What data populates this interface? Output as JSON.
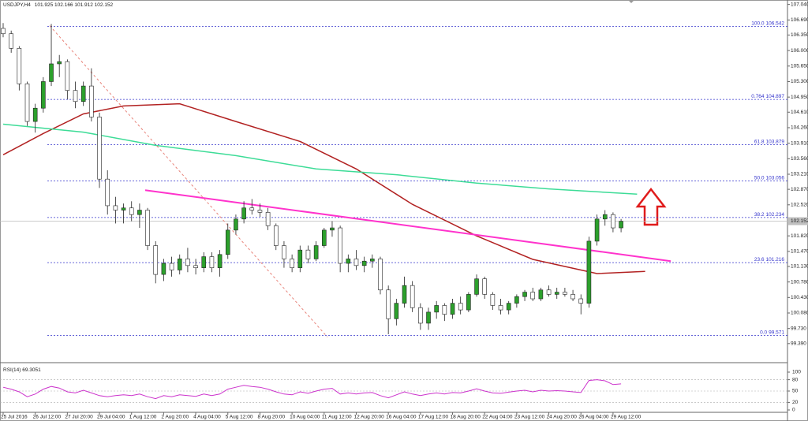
{
  "chart_data": [
    {
      "type": "candlestick",
      "title": "USDJPY,H4",
      "header_values": [
        101.925,
        102.166,
        101.912,
        102.152
      ],
      "up_color": "#2ca02c",
      "down_color": "#ffffff",
      "categories": [
        "25 Jul 2016",
        null,
        null,
        null,
        "26 Jul 12:00",
        null,
        null,
        null,
        "27 Jul 20:00",
        null,
        null,
        null,
        "29 Jul 04:00",
        null,
        null,
        null,
        "1 Aug 12:00",
        null,
        null,
        null,
        "2 Aug 20:00",
        null,
        null,
        null,
        "4 Aug 04:00",
        null,
        null,
        null,
        "5 Aug 12:00",
        null,
        null,
        null,
        "8 Aug 20:00",
        null,
        null,
        null,
        "10 Aug 04:00",
        null,
        null,
        null,
        "11 Aug 12:00",
        null,
        null,
        null,
        "12 Aug 20:00",
        null,
        null,
        null,
        "16 Aug 04:00",
        null,
        null,
        null,
        "17 Aug 12:00",
        null,
        null,
        null,
        "18 Aug 20:00",
        null,
        null,
        null,
        "22 Aug 04:00",
        null,
        null,
        null,
        "23 Aug 12:00",
        null,
        null,
        null,
        "24 Aug 20:00",
        null,
        null,
        null,
        "26 Aug 04:00",
        null,
        null,
        null,
        "29 Aug 12:00",
        null
      ],
      "ohlc": [
        [
          106.5,
          106.62,
          106.3,
          106.38
        ],
        [
          106.38,
          106.45,
          105.95,
          106.05
        ],
        [
          106.05,
          106.1,
          105.1,
          105.25
        ],
        [
          105.25,
          105.3,
          104.3,
          104.4
        ],
        [
          104.4,
          104.8,
          104.15,
          104.7
        ],
        [
          104.7,
          105.4,
          104.6,
          105.3
        ],
        [
          105.3,
          106.6,
          105.2,
          105.7
        ],
        [
          105.7,
          105.9,
          105.4,
          105.75
        ],
        [
          105.75,
          105.8,
          104.9,
          105.1
        ],
        [
          105.1,
          105.3,
          104.7,
          104.85
        ],
        [
          104.85,
          105.3,
          104.75,
          105.2
        ],
        [
          105.2,
          105.6,
          104.4,
          104.5
        ],
        [
          104.5,
          104.6,
          102.9,
          103.1
        ],
        [
          103.1,
          103.3,
          102.3,
          102.5
        ],
        [
          102.5,
          102.7,
          102.1,
          102.4
        ],
        [
          102.4,
          102.55,
          102.1,
          102.45
        ],
        [
          102.45,
          102.6,
          102.15,
          102.3
        ],
        [
          102.3,
          102.55,
          102.0,
          102.4
        ],
        [
          102.4,
          102.45,
          101.5,
          101.6
        ],
        [
          101.6,
          101.7,
          100.75,
          100.95
        ],
        [
          100.95,
          101.3,
          100.8,
          101.2
        ],
        [
          101.2,
          101.35,
          100.9,
          101.05
        ],
        [
          101.05,
          101.4,
          100.95,
          101.3
        ],
        [
          101.3,
          101.55,
          101.0,
          101.15
        ],
        [
          101.15,
          101.3,
          100.95,
          101.1
        ],
        [
          101.1,
          101.45,
          101.0,
          101.35
        ],
        [
          101.35,
          101.45,
          101.0,
          101.1
        ],
        [
          101.1,
          101.5,
          100.9,
          101.4
        ],
        [
          101.4,
          102.1,
          101.3,
          101.95
        ],
        [
          101.95,
          102.3,
          101.85,
          102.2
        ],
        [
          102.2,
          102.6,
          102.1,
          102.45
        ],
        [
          102.45,
          102.65,
          102.3,
          102.4
        ],
        [
          102.4,
          102.55,
          102.25,
          102.35
        ],
        [
          102.35,
          102.45,
          101.95,
          102.05
        ],
        [
          102.05,
          102.1,
          101.5,
          101.6
        ],
        [
          101.6,
          101.7,
          101.1,
          101.3
        ],
        [
          101.3,
          101.4,
          101.0,
          101.1
        ],
        [
          101.1,
          101.6,
          101.0,
          101.5
        ],
        [
          101.5,
          101.6,
          101.2,
          101.3
        ],
        [
          101.3,
          101.7,
          101.25,
          101.6
        ],
        [
          101.6,
          102.0,
          101.55,
          101.95
        ],
        [
          101.95,
          102.15,
          101.8,
          102.0
        ],
        [
          102.0,
          102.05,
          101.0,
          101.2
        ],
        [
          101.2,
          101.4,
          101.0,
          101.3
        ],
        [
          101.3,
          101.5,
          101.05,
          101.15
        ],
        [
          101.15,
          101.35,
          101.0,
          101.25
        ],
        [
          101.25,
          101.4,
          101.1,
          101.3
        ],
        [
          101.3,
          101.35,
          100.5,
          100.6
        ],
        [
          100.6,
          100.7,
          99.6,
          99.95
        ],
        [
          99.95,
          100.4,
          99.8,
          100.3
        ],
        [
          100.3,
          100.9,
          100.2,
          100.7
        ],
        [
          100.7,
          100.8,
          100.1,
          100.2
        ],
        [
          100.2,
          100.3,
          99.7,
          99.85
        ],
        [
          99.85,
          100.2,
          99.7,
          100.1
        ],
        [
          100.1,
          100.35,
          99.95,
          100.25
        ],
        [
          100.25,
          100.3,
          99.9,
          100.05
        ],
        [
          100.05,
          100.4,
          99.95,
          100.3
        ],
        [
          100.3,
          100.45,
          100.05,
          100.15
        ],
        [
          100.15,
          100.55,
          100.1,
          100.5
        ],
        [
          100.5,
          100.95,
          100.45,
          100.85
        ],
        [
          100.85,
          100.9,
          100.4,
          100.5
        ],
        [
          100.5,
          100.55,
          100.15,
          100.25
        ],
        [
          100.25,
          100.4,
          100.05,
          100.15
        ],
        [
          100.15,
          100.35,
          100.05,
          100.3
        ],
        [
          100.3,
          100.5,
          100.2,
          100.45
        ],
        [
          100.45,
          100.6,
          100.35,
          100.55
        ],
        [
          100.55,
          100.65,
          100.35,
          100.4
        ],
        [
          100.4,
          100.65,
          100.35,
          100.6
        ],
        [
          100.6,
          100.7,
          100.45,
          100.5
        ],
        [
          100.5,
          100.65,
          100.4,
          100.55
        ],
        [
          100.55,
          100.65,
          100.45,
          100.5
        ],
        [
          100.5,
          100.6,
          100.35,
          100.4
        ],
        [
          100.4,
          100.5,
          100.05,
          100.3
        ],
        [
          100.3,
          101.8,
          100.2,
          101.7
        ],
        [
          101.7,
          102.3,
          101.6,
          102.2
        ],
        [
          102.2,
          102.4,
          102.05,
          102.3
        ],
        [
          102.3,
          102.35,
          101.9,
          102.0
        ],
        [
          102.0,
          102.2,
          101.9,
          102.15
        ]
      ],
      "lines": [
        {
          "color": "#b22222",
          "width": 1.5,
          "x": [
            0,
            5,
            10,
            15,
            22,
            29,
            37,
            44,
            51,
            59,
            66,
            74,
            80
          ],
          "values": [
            103.65,
            104.13,
            104.57,
            104.75,
            104.8,
            104.4,
            103.95,
            103.33,
            102.53,
            101.82,
            101.29,
            100.97,
            101.02
          ]
        },
        {
          "color": "#3ddc97",
          "width": 1.5,
          "x": [
            0,
            10,
            19,
            29,
            39,
            49,
            59,
            68,
            79
          ],
          "values": [
            104.34,
            104.16,
            103.86,
            103.63,
            103.33,
            103.2,
            103.01,
            102.88,
            102.76
          ]
        },
        {
          "color": "#ff33cc",
          "width": 2,
          "x": [
            17.7,
            83.2
          ],
          "values": [
            102.85,
            101.25
          ]
        },
        {
          "color": "#e8837a",
          "width": 1,
          "dash": true,
          "x": [
            5.8,
            40.4
          ],
          "values": [
            106.56,
            99.54
          ]
        }
      ],
      "fib_levels": [
        {
          "label": "100.0",
          "value": 106.542
        },
        {
          "label": "0.764",
          "value": 104.897
        },
        {
          "label": "61.8",
          "value": 103.879
        },
        {
          "label": "50.0",
          "value": 103.056
        },
        {
          "label": "38.2",
          "value": 102.234
        },
        {
          "label": "23.6",
          "value": 101.216
        },
        {
          "label": "0.0",
          "value": 99.571
        }
      ],
      "last_price": 102.152,
      "ylim": [
        99.28,
        107.14
      ],
      "yticks": [
        {
          "value": 107.04,
          "label": "107.040"
        },
        {
          "value": 106.69,
          "label": "106.690"
        },
        {
          "value": 106.35,
          "label": "106.350"
        },
        {
          "value": 106.0,
          "label": "106.000"
        },
        {
          "value": 105.65,
          "label": "105.650"
        },
        {
          "value": 105.3,
          "label": "105.300"
        },
        {
          "value": 104.95,
          "label": "104.950"
        },
        {
          "value": 104.61,
          "label": "104.610"
        },
        {
          "value": 104.26,
          "label": "104.260"
        },
        {
          "value": 103.91,
          "label": "103.910"
        },
        {
          "value": 103.56,
          "label": "103.560"
        },
        {
          "value": 103.21,
          "label": "103.210"
        },
        {
          "value": 102.87,
          "label": "102.870"
        },
        {
          "value": 102.52,
          "label": "102.520"
        },
        {
          "value": 101.82,
          "label": "101.820"
        },
        {
          "value": 101.47,
          "label": "101.470"
        },
        {
          "value": 101.13,
          "label": "101.130"
        },
        {
          "value": 100.78,
          "label": "100.780"
        },
        {
          "value": 100.43,
          "label": "100.430"
        },
        {
          "value": 100.08,
          "label": "100.080"
        },
        {
          "value": 99.73,
          "label": "99.730"
        },
        {
          "value": 99.39,
          "label": "99.390"
        }
      ]
    },
    {
      "type": "line",
      "title": "RSI(14)",
      "last_value": 69.3051,
      "color": "#cc33cc",
      "values": [
        60,
        55,
        48,
        35,
        42,
        55,
        62,
        58,
        48,
        45,
        52,
        45,
        38,
        35,
        38,
        40,
        38,
        42,
        35,
        30,
        38,
        35,
        40,
        38,
        36,
        42,
        38,
        42,
        55,
        60,
        65,
        62,
        60,
        55,
        48,
        42,
        40,
        48,
        44,
        50,
        55,
        57,
        42,
        45,
        42,
        45,
        46,
        38,
        32,
        40,
        48,
        42,
        38,
        42,
        45,
        42,
        46,
        45,
        50,
        56,
        50,
        45,
        44,
        47,
        50,
        52,
        48,
        52,
        50,
        51,
        50,
        48,
        46,
        78,
        80,
        77,
        67,
        69
      ],
      "ylim": [
        0,
        100
      ],
      "yticks": [
        100,
        80,
        50,
        20,
        0
      ]
    }
  ]
}
